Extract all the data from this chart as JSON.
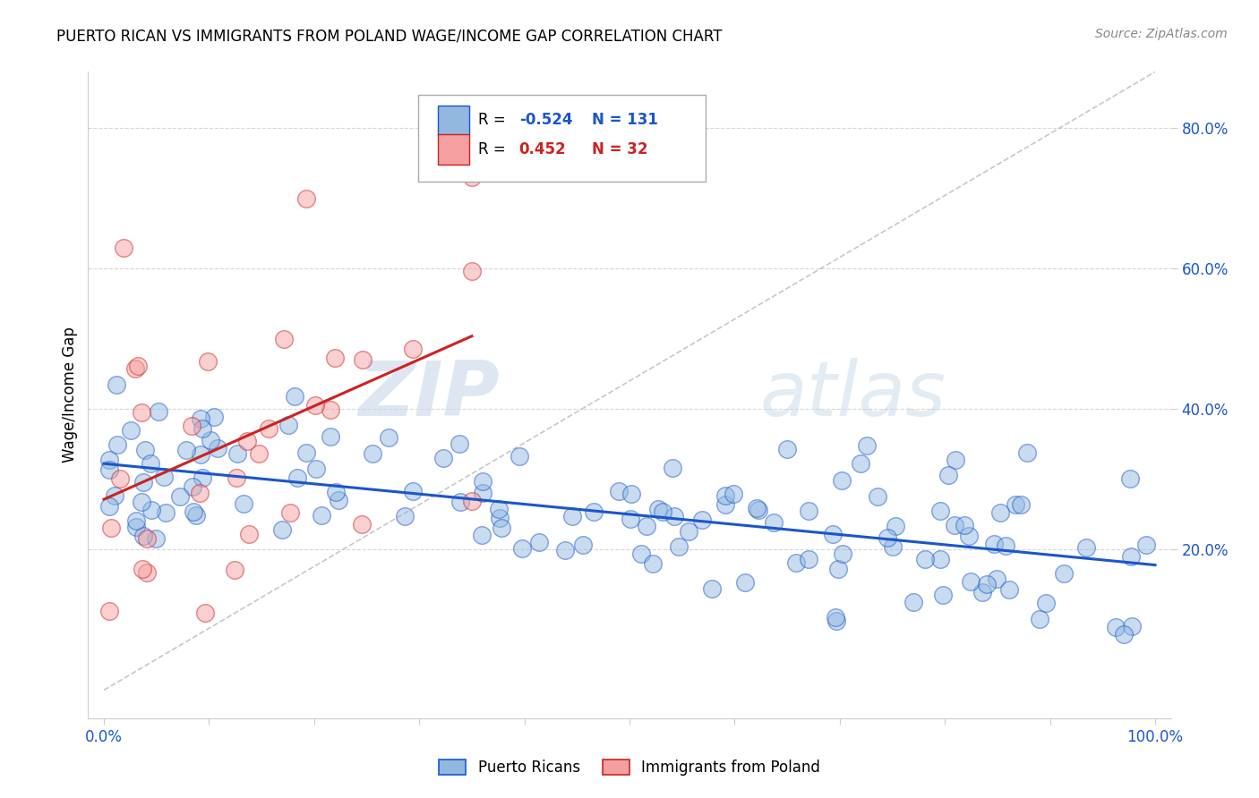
{
  "title": "PUERTO RICAN VS IMMIGRANTS FROM POLAND WAGE/INCOME GAP CORRELATION CHART",
  "source": "Source: ZipAtlas.com",
  "ylabel": "Wage/Income Gap",
  "blue_color": "#92b8e0",
  "pink_color": "#f4a0a0",
  "blue_line_color": "#1a56cc",
  "pink_line_color": "#cc2222",
  "legend_r_blue": "-0.524",
  "legend_n_blue": "131",
  "legend_r_pink": "0.452",
  "legend_n_pink": "32",
  "legend_label_blue": "Puerto Ricans",
  "legend_label_pink": "Immigrants from Poland",
  "watermark_zip": "ZIP",
  "watermark_atlas": "atlas",
  "background_color": "#ffffff",
  "grid_color": "#cccccc",
  "y_ticks": [
    0.2,
    0.4,
    0.6,
    0.8
  ],
  "blue_seed": 42,
  "pink_seed": 77,
  "n_blue": 131,
  "n_pink": 32
}
